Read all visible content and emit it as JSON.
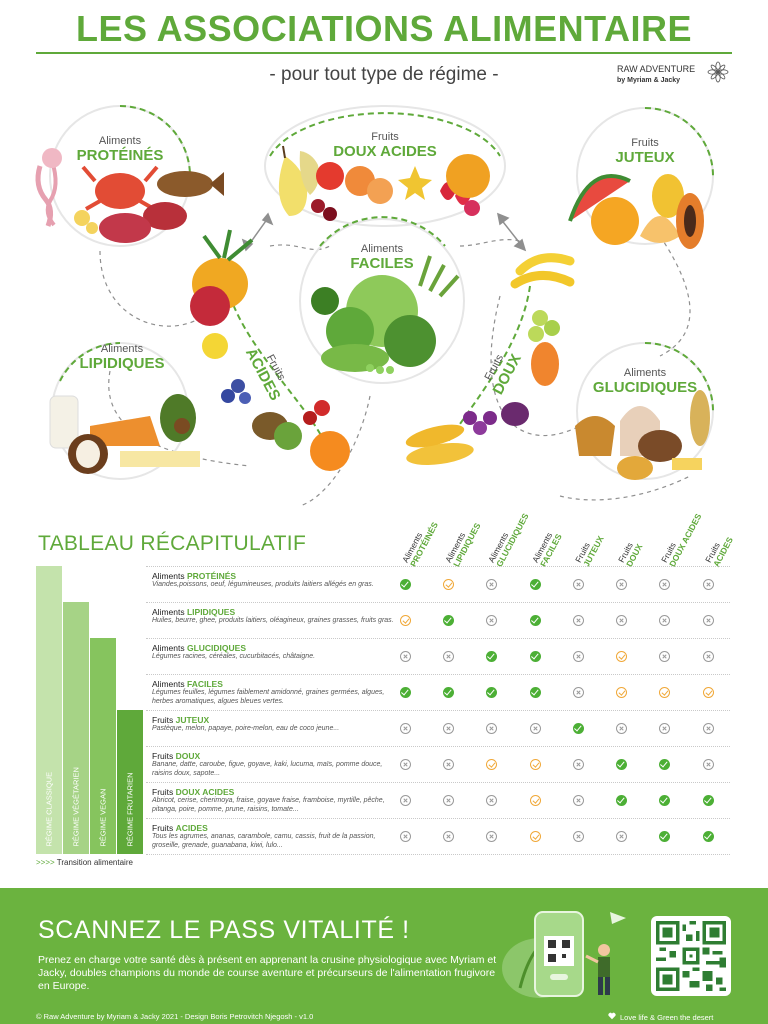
{
  "header": {
    "title": "LES ASSOCIATIONS ALIMENTAIRE",
    "subtitle": "- pour tout type de régime -",
    "brand_line1": "RAW ADVENTURE",
    "brand_line2": "by Myriam & Jacky"
  },
  "groups": {
    "proteines": {
      "small": "Aliments",
      "big": "PROTÉINÉS"
    },
    "doux_acides": {
      "small": "Fruits",
      "big": "DOUX ACIDES"
    },
    "juteux": {
      "small": "Fruits",
      "big": "JUTEUX"
    },
    "faciles": {
      "small": "Aliments",
      "big": "FACILES"
    },
    "lipidiques": {
      "small": "Aliments",
      "big": "LIPIDIQUES"
    },
    "acides": {
      "small": "Fruits",
      "big": "ACIDES"
    },
    "doux": {
      "small": "Fruits",
      "big": "DOUX"
    },
    "glucidiques": {
      "small": "Aliments",
      "big": "GLUCIDIQUES"
    }
  },
  "table": {
    "title": "TABLEAU RÉCAPITULATIF",
    "columns": [
      {
        "small": "Aliments",
        "big": "PROTÉINÉS"
      },
      {
        "small": "Aliments",
        "big": "LIPIDIQUES"
      },
      {
        "small": "Aliments",
        "big": "GLUCIDIQUES"
      },
      {
        "small": "Aliments",
        "big": "FACILES"
      },
      {
        "small": "Fruits",
        "big": "JUTEUX"
      },
      {
        "small": "Fruits",
        "big": "DOUX"
      },
      {
        "small": "Fruits",
        "big": "DOUX ACIDES"
      },
      {
        "small": "Fruits",
        "big": "ACIDES"
      }
    ],
    "rows": [
      {
        "small": "Aliments",
        "big": "PROTÉINÉS",
        "desc": "Viandes,poissons, oeuf, légumineuses, produits laitiers allégés en gras.",
        "cells": [
          "ok",
          "warn",
          "no",
          "ok",
          "no",
          "no",
          "no",
          "no"
        ]
      },
      {
        "small": "Aliments",
        "big": "LIPIDIQUES",
        "desc": "Huiles, beurre, ghee, produits laitiers, oléagineux, graines grasses, fruits gras.",
        "cells": [
          "warn",
          "ok",
          "no",
          "ok",
          "no",
          "no",
          "no",
          "no"
        ]
      },
      {
        "small": "Aliments",
        "big": "GLUCIDIQUES",
        "desc": "Légumes racines, céréales, cucurbitacés, châtaigne.",
        "cells": [
          "no",
          "no",
          "ok",
          "ok",
          "no",
          "warn",
          "no",
          "no"
        ]
      },
      {
        "small": "Aliments",
        "big": "FACILES",
        "desc": "Légumes feuilles, légumes faiblement amidonné, graines germées, algues, herbes aromatiques, algues bleues vertes.",
        "cells": [
          "ok",
          "ok",
          "ok",
          "ok",
          "no",
          "warn",
          "warn",
          "warn"
        ]
      },
      {
        "small": "Fruits",
        "big": "JUTEUX",
        "desc": "Pastèque, melon, papaye, poire-melon, eau de coco jeune...",
        "cells": [
          "no",
          "no",
          "no",
          "no",
          "ok",
          "no",
          "no",
          "no"
        ]
      },
      {
        "small": "Fruits",
        "big": "DOUX",
        "desc": "Banane, datte, caroube, figue, goyave, kaki, lucuma, maïs, pomme douce, raisins doux, sapote...",
        "cells": [
          "no",
          "no",
          "warn",
          "warn",
          "no",
          "ok",
          "ok",
          "no"
        ]
      },
      {
        "small": "Fruits",
        "big": "DOUX ACIDES",
        "desc": "Abricot, cerise, cherimoya, fraise, goyave fraise, framboise, myrtille, pêche, pitanga, poire, pomme, prune, raisins, tomate...",
        "cells": [
          "no",
          "no",
          "no",
          "warn",
          "no",
          "ok",
          "ok",
          "ok"
        ]
      },
      {
        "small": "Fruits",
        "big": "ACIDES",
        "desc": "Tous les agrumes, ananas, carambole, camu, cassis, fruit de la passion, groseille, grenade, guanabana, kiwi, lulo...",
        "cells": [
          "no",
          "no",
          "no",
          "warn",
          "no",
          "no",
          "ok",
          "ok"
        ]
      }
    ],
    "diets": [
      {
        "label": "RÉGIME CLASSIQUE",
        "color": "#c4e3ac"
      },
      {
        "label": "RÉGIME VÉGÉTARIEN",
        "color": "#a6d386"
      },
      {
        "label": "RÉGIME VEGAN",
        "color": "#86c45e"
      },
      {
        "label": "RÉGIME FRUTARIEN",
        "color": "#5fa93a"
      }
    ],
    "transition_arrow": ">>>>",
    "transition_text": "Transition alimentaire"
  },
  "banner": {
    "title": "SCANNEZ LE PASS VITALITÉ !",
    "text": "Prenez en charge votre santé dès à présent en apprenant la crusine physiologique avec Myriam et Jacky, doubles champions du monde de course aventure et précurseurs de l'alimentation frugivore en Europe.",
    "footer_left": "© Raw Adventure by Myriam & Jacky 2021 - Design Boris Petrovitch Njegosh - v1.0",
    "footer_right": "Love life & Green the desert"
  },
  "colors": {
    "accent": "#5fa93a",
    "ok": "#4caf35",
    "warn": "#f0a838",
    "no": "#9a9a9a",
    "banner": "#6bb33f"
  }
}
